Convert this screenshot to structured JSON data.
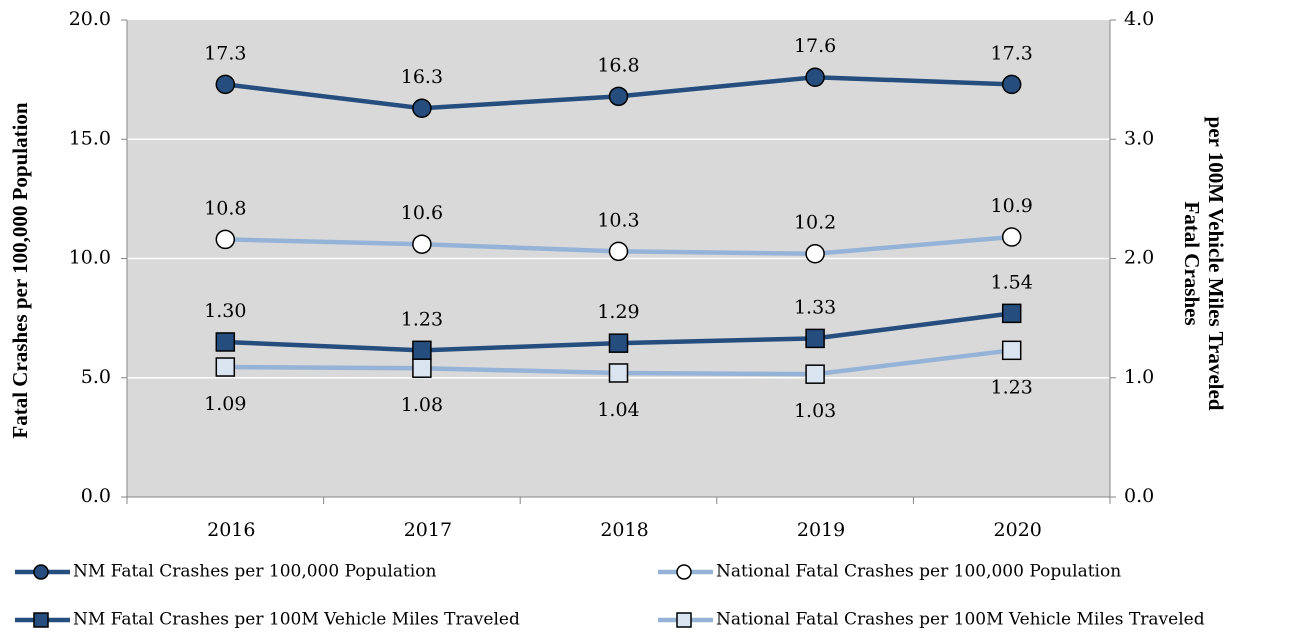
{
  "chart_data": {
    "type": "line",
    "ylabel": "Fatal Crashes per 100,000 Population",
    "y2label": [
      "Fatal Crashes",
      "per 100M Vehicle Miles Traveled"
    ],
    "categories": [
      "2016",
      "2017",
      "2018",
      "2019",
      "2020"
    ],
    "ylim": [
      0,
      20
    ],
    "yticks": [
      {
        "value": 0,
        "label": "0.0"
      },
      {
        "value": 5,
        "label": "5.0"
      },
      {
        "value": 10,
        "label": "10.0"
      },
      {
        "value": 15,
        "label": "15.0"
      },
      {
        "value": 20,
        "label": "20.0"
      }
    ],
    "y2lim": [
      0,
      4
    ],
    "y2ticks": [
      {
        "value": 0,
        "label": "0.0"
      },
      {
        "value": 1,
        "label": "1.0"
      },
      {
        "value": 2,
        "label": "2.0"
      },
      {
        "value": 3,
        "label": "3.0"
      },
      {
        "value": 4,
        "label": "4.0"
      }
    ],
    "grid": true,
    "series": [
      {
        "name": "NM Fatal Crashes per 100,000 Population",
        "color": "#254e7e",
        "marker": "circle",
        "marker_fill": "#254e7e",
        "values": [
          17.3,
          16.3,
          16.8,
          17.6,
          17.3
        ]
      },
      {
        "name": "National Fatal Crashes per 100,000 Population",
        "color": "#95b3d7",
        "marker": "circle",
        "marker_fill": "#ffffff",
        "values": [
          10.8,
          10.6,
          10.3,
          10.2,
          10.9
        ]
      },
      {
        "name": "NM Fatal Crashes per 100M Vehicle Miles Traveled",
        "color": "#254e7e",
        "marker": "square",
        "marker_fill": "#254e7e",
        "axis": "y2",
        "values": [
          1.3,
          1.23,
          1.29,
          1.33,
          1.54
        ],
        "value_labels": [
          "1.30",
          "1.23",
          "1.29",
          "1.33",
          "1.54"
        ]
      },
      {
        "name": "National Fatal Crashes per 100M Vehicle Miles Traveled",
        "color": "#95b3d7",
        "marker": "square",
        "marker_fill": "#dbe5f1",
        "axis": "y2",
        "values": [
          1.09,
          1.08,
          1.04,
          1.03,
          1.23
        ]
      }
    ]
  }
}
